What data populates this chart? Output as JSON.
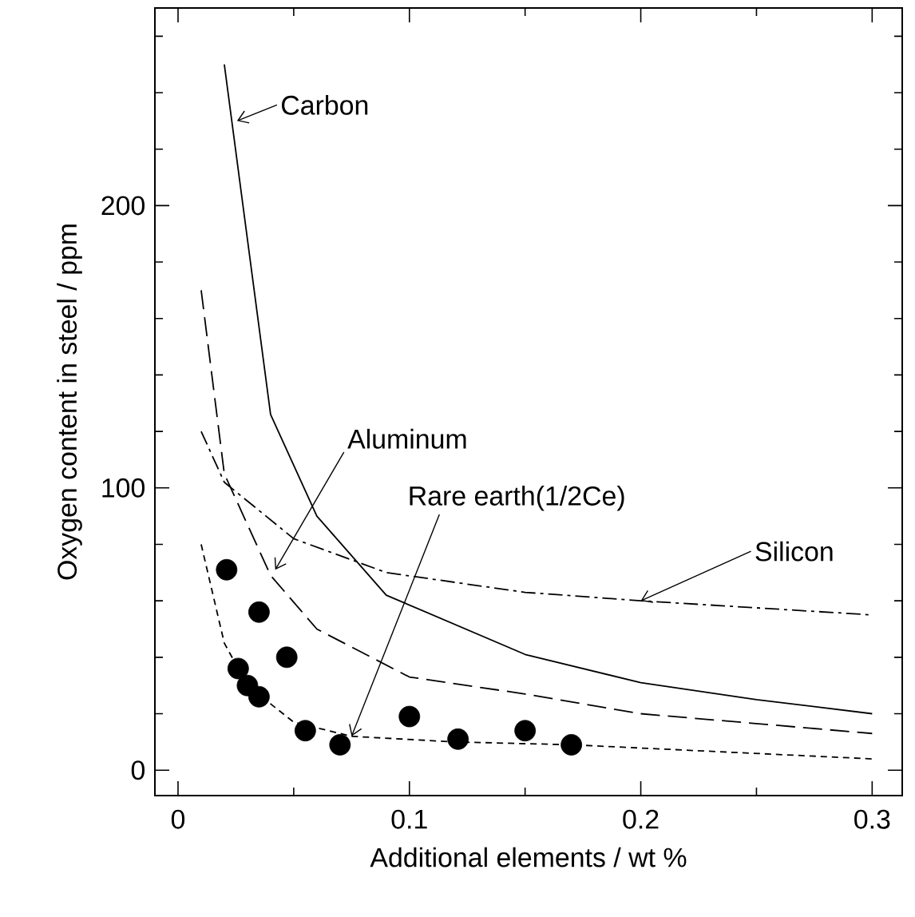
{
  "chart_data": {
    "type": "line",
    "xlabel": "Additional elements / wt %",
    "ylabel": "Oxygen content in steel / ppm",
    "xlim": [
      -0.01,
      0.313
    ],
    "ylim": [
      -9,
      270
    ],
    "xticks": [
      0,
      {
        "value": 0.05,
        "label": null
      },
      0.1,
      {
        "value": 0.15,
        "label": null
      },
      0.2,
      {
        "value": 0.25,
        "label": null
      },
      0.3
    ],
    "yticks": [
      0,
      {
        "value": 20,
        "label": null
      },
      {
        "value": 40,
        "label": null
      },
      {
        "value": 60,
        "label": null
      },
      {
        "value": 80,
        "label": null
      },
      100,
      {
        "value": 120,
        "label": null
      },
      {
        "value": 140,
        "label": null
      },
      {
        "value": 160,
        "label": null
      },
      {
        "value": 180,
        "label": null
      },
      200,
      {
        "value": 220,
        "label": null
      },
      {
        "value": 240,
        "label": null
      },
      {
        "value": 260,
        "label": null
      }
    ],
    "grid": false,
    "series": [
      {
        "color": "#000000",
        "line_style": "solid",
        "x": [
          0.02,
          0.04,
          0.06,
          0.09,
          0.15,
          0.2,
          0.25,
          0.3
        ],
        "values": [
          250,
          126,
          90,
          62,
          41,
          31,
          25,
          20
        ]
      },
      {
        "color": "#000000",
        "line_style": "dashed",
        "x": [
          0.01,
          0.02,
          0.04,
          0.06,
          0.1,
          0.15,
          0.2,
          0.3
        ],
        "values": [
          170,
          105,
          69,
          50,
          33,
          27,
          20,
          13
        ]
      },
      {
        "color": "#000000",
        "line_style": "dashdot",
        "x": [
          0.01,
          0.02,
          0.05,
          0.09,
          0.15,
          0.2,
          0.3
        ],
        "values": [
          120,
          102,
          82,
          70,
          63,
          60,
          55
        ]
      },
      {
        "color": "#000000",
        "line_style": "dotted",
        "x": [
          0.01,
          0.02,
          0.03,
          0.05,
          0.075,
          0.12,
          0.17,
          0.3
        ],
        "values": [
          80,
          45,
          30,
          17,
          12,
          10,
          9,
          4
        ]
      },
      {
        "type": "scatter",
        "color": "#000000",
        "marker": "circle",
        "x": [
          0.021,
          0.035,
          0.047,
          0.026,
          0.03,
          0.035,
          0.055,
          0.07,
          0.1,
          0.121,
          0.15,
          0.17
        ],
        "values": [
          71,
          56,
          40,
          36,
          30,
          26,
          14,
          9,
          19,
          11,
          14,
          9
        ]
      }
    ],
    "annotations": [
      {
        "text": "Carbon",
        "x": 0.0255,
        "y": 230
      },
      {
        "text": "Aluminum",
        "x": 0.042,
        "y": 71
      },
      {
        "text": "Rare earth(1/2Ce)",
        "x": 0.075,
        "y": 12
      },
      {
        "text": "Silicon",
        "x": 0.2,
        "y": 60
      }
    ]
  }
}
